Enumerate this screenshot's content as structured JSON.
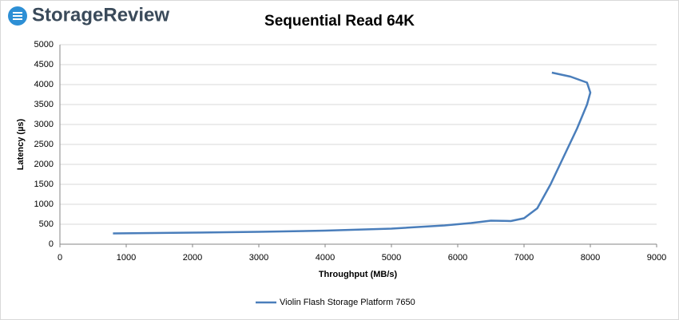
{
  "brand": "StorageReview",
  "chart_data": {
    "type": "line",
    "title": "Sequential Read 64K",
    "x_label": "Throughput (MB/s)",
    "y_label": "Latency (µs)",
    "series": [
      {
        "name": "Violin Flash Storage Platform 7650",
        "color": "#4a7ebb",
        "x": [
          800,
          2000,
          3000,
          4000,
          5000,
          5800,
          6200,
          6500,
          6800,
          7000,
          7200,
          7400,
          7600,
          7800,
          7950,
          8000,
          7950,
          7700,
          7420
        ],
        "values": [
          270,
          290,
          310,
          340,
          390,
          470,
          530,
          590,
          580,
          650,
          900,
          1500,
          2200,
          2900,
          3500,
          3800,
          4050,
          4200,
          4300
        ]
      }
    ],
    "xlim": [
      0,
      9000
    ],
    "xticks": [
      0,
      1000,
      2000,
      3000,
      4000,
      5000,
      6000,
      7000,
      8000,
      9000
    ],
    "ylim": [
      0,
      5000
    ],
    "yticks": [
      0,
      500,
      1000,
      1500,
      2000,
      2500,
      3000,
      3500,
      4000,
      4500,
      5000
    ],
    "grid": true,
    "legend": "bottom"
  }
}
